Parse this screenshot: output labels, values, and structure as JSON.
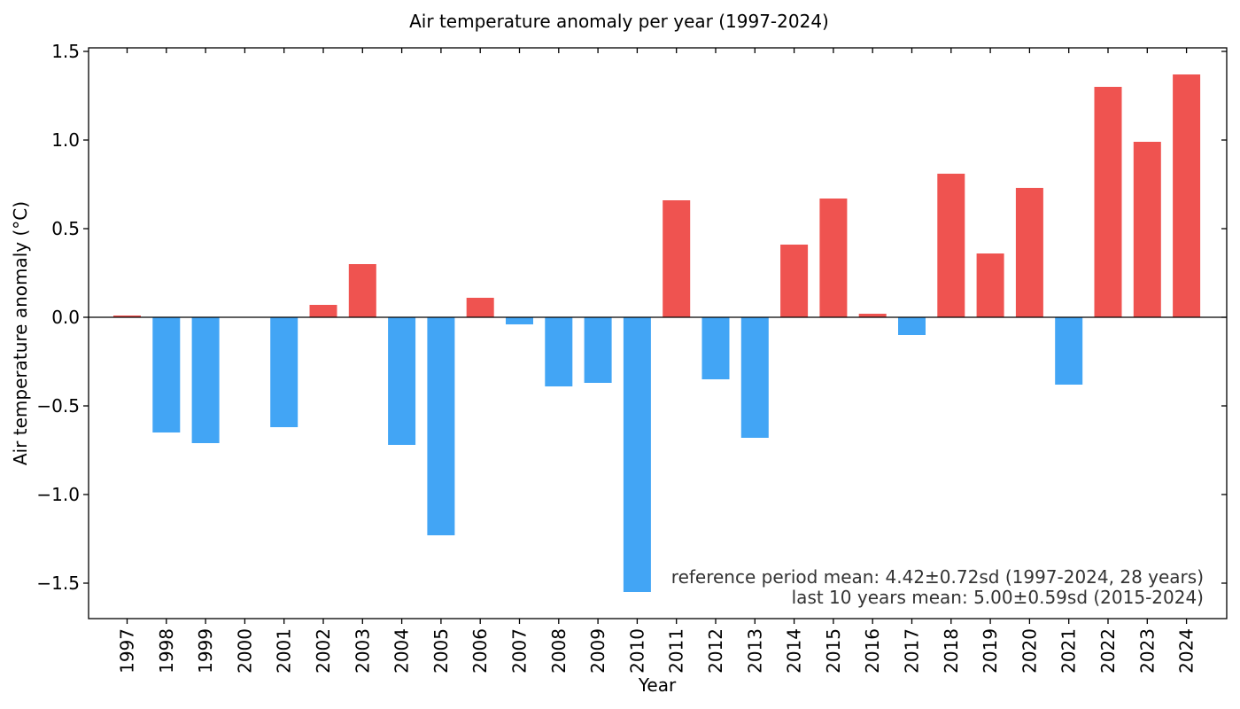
{
  "chart_data": {
    "type": "bar",
    "title": "Air temperature anomaly per year (1997-2024)",
    "xlabel": "Year",
    "ylabel": "Air temperature anomaly  (°C)",
    "ylim": [
      -1.7,
      1.52
    ],
    "yticks": [
      -1.5,
      -1.0,
      -0.5,
      0.0,
      0.5,
      1.0,
      1.5
    ],
    "ytick_labels": [
      "−1.5",
      "−1.0",
      "−0.5",
      "0.0",
      "0.5",
      "1.0",
      "1.5"
    ],
    "categories": [
      "1997",
      "1998",
      "1999",
      "2000",
      "2001",
      "2002",
      "2003",
      "2004",
      "2005",
      "2006",
      "2007",
      "2008",
      "2009",
      "2010",
      "2011",
      "2012",
      "2013",
      "2014",
      "2015",
      "2016",
      "2017",
      "2018",
      "2019",
      "2020",
      "2021",
      "2022",
      "2023",
      "2024"
    ],
    "values": [
      0.01,
      -0.65,
      -0.71,
      0.0,
      -0.62,
      0.07,
      0.3,
      -0.72,
      -1.23,
      0.11,
      -0.04,
      -0.39,
      -0.37,
      -1.55,
      0.66,
      -0.35,
      -0.68,
      0.41,
      0.67,
      0.02,
      -0.1,
      0.81,
      0.36,
      0.73,
      -0.38,
      1.3,
      0.99,
      1.37
    ],
    "grid": false,
    "colors": {
      "positive": "#ef5350",
      "negative": "#42a5f5",
      "zero_line": "#000000"
    },
    "annotations": [
      "reference period mean: 4.42±0.72sd (1997-2024, 28 years)",
      "last 10 years mean: 5.00±0.59sd (2015-2024)"
    ]
  }
}
